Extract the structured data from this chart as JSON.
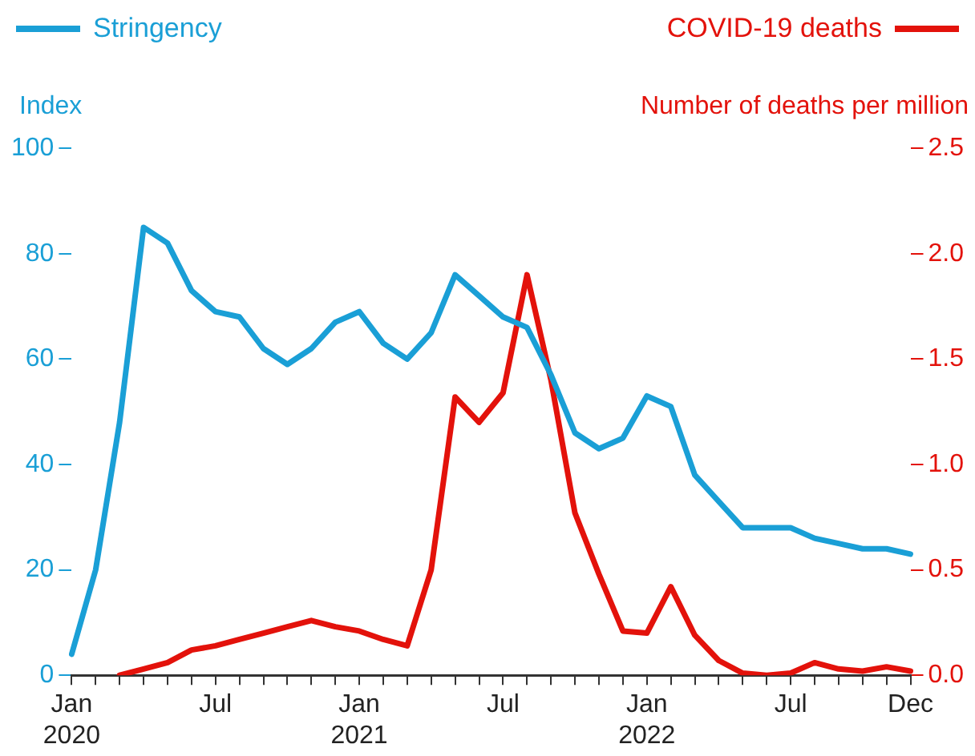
{
  "chart_data": {
    "type": "line",
    "categories": [
      "Jan 2020",
      null,
      null,
      null,
      null,
      null,
      "Jul",
      null,
      null,
      null,
      null,
      null,
      "Jan 2021",
      null,
      null,
      null,
      null,
      null,
      "Jul",
      null,
      null,
      null,
      null,
      null,
      "Jan 2022",
      null,
      null,
      null,
      null,
      null,
      "Jul",
      null,
      null,
      null,
      null,
      "Dec"
    ],
    "series": [
      {
        "name": "Stringency",
        "color": "#1a9fd6",
        "values": [
          4,
          20,
          48,
          85,
          82,
          73,
          69,
          68,
          62,
          59,
          62,
          67,
          69,
          63,
          60,
          65,
          76,
          72,
          68,
          66,
          57,
          46,
          43,
          45,
          53,
          51,
          38,
          33,
          28,
          28,
          28,
          26,
          25,
          24,
          24,
          23
        ]
      },
      {
        "name": "COVID-19 deaths",
        "color": "#e3120b",
        "axis": "y2",
        "values": [
          null,
          null,
          0,
          0.03,
          0.06,
          0.12,
          0.14,
          0.17,
          0.2,
          0.23,
          0.26,
          0.23,
          0.21,
          0.17,
          0.14,
          0.5,
          1.32,
          1.2,
          1.34,
          1.9,
          1.4,
          0.77,
          0.48,
          0.21,
          0.2,
          0.42,
          0.19,
          0.07,
          0.01,
          0,
          0.01,
          0.06,
          0.03,
          0.02,
          0.04,
          0.02
        ]
      }
    ],
    "ylabel": "Index",
    "y2label": "Number of deaths per million",
    "ylim": [
      0,
      100
    ],
    "yticks": [
      0,
      20,
      40,
      60,
      80,
      100
    ],
    "y2lim": [
      0,
      2.5
    ],
    "y2ticks": [
      {
        "value": 0,
        "label": "0.0"
      },
      {
        "value": 0.5,
        "label": "0.5"
      },
      {
        "value": 1,
        "label": "1.0"
      },
      {
        "value": 1.5,
        "label": "1.5"
      },
      {
        "value": 2,
        "label": "2.0"
      },
      {
        "value": 2.5,
        "label": "2.5"
      }
    ],
    "legend": "top",
    "grid": false,
    "marker": "none",
    "line_style": "solid"
  }
}
